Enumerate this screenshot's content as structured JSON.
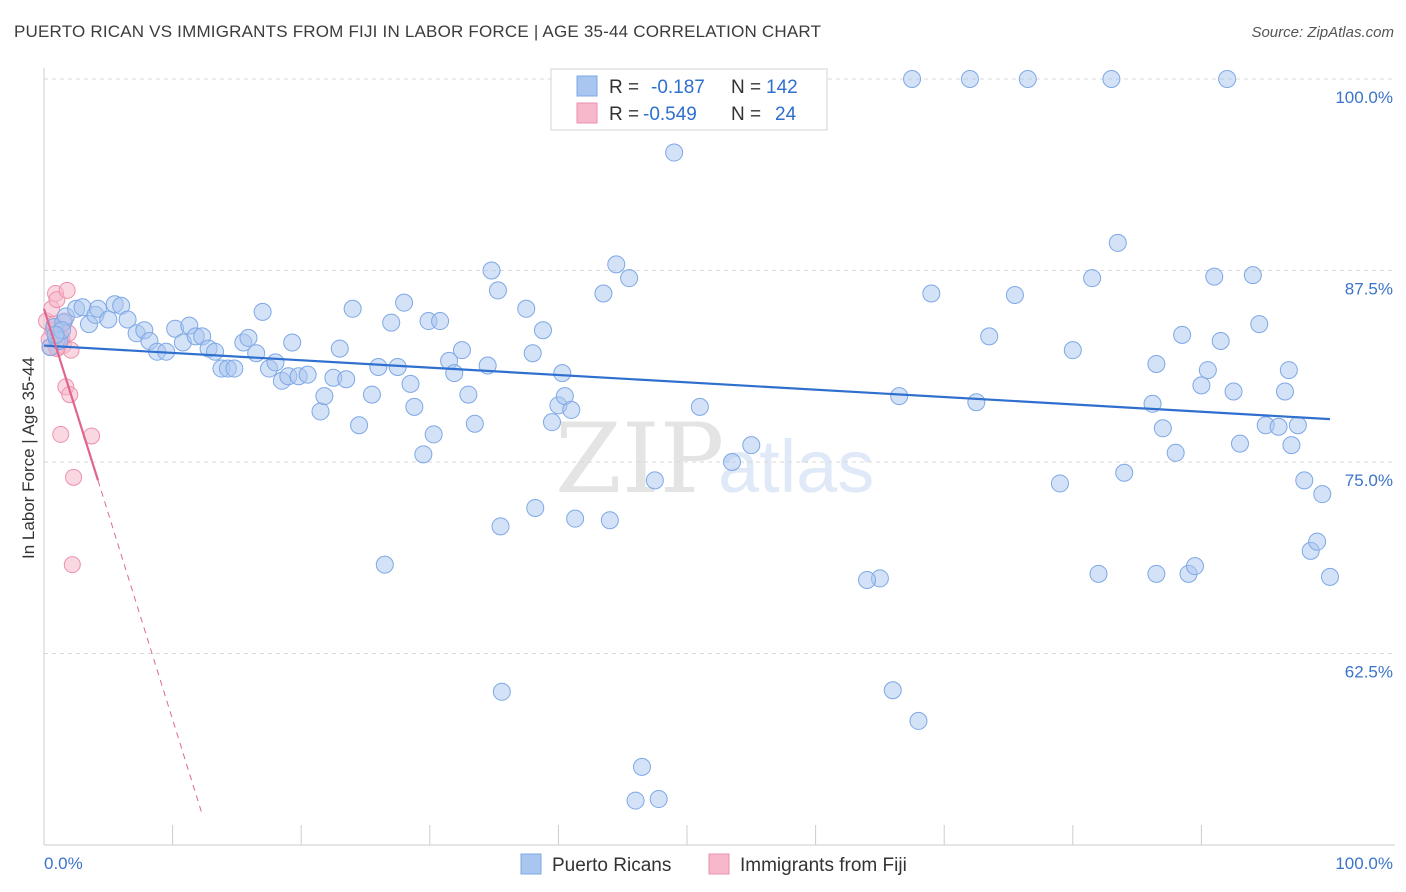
{
  "title": "PUERTO RICAN VS IMMIGRANTS FROM FIJI IN LABOR FORCE | AGE 35-44 CORRELATION CHART",
  "source": "Source: ZipAtlas.com",
  "legend_top": {
    "r_label": "R =",
    "n_label": "N =",
    "rows": [
      {
        "r": "-0.187",
        "n": "142"
      },
      {
        "r": "-0.549",
        "n": "24"
      }
    ]
  },
  "colors": {
    "blue_fill": "#a9c6f0",
    "blue_stroke": "#7ea8e6",
    "blue_line": "#2f6fce",
    "pink_fill": "#f6b8ca",
    "pink_stroke": "#ec91ad",
    "pink_line": "#e0668f",
    "grid": "#d9d9d9",
    "tick_label": "#3b74c9"
  },
  "watermark": {
    "zip": "ZIP",
    "atlas": "atlas"
  },
  "chart_data": {
    "type": "scatter",
    "title": "PUERTO RICAN VS IMMIGRANTS FROM FIJI IN LABOR FORCE | AGE 35-44 CORRELATION CHART",
    "xlabel": "",
    "ylabel": "In Labor Force | Age 35-44",
    "xlim": [
      0,
      100
    ],
    "ylim": [
      51.5,
      101
    ],
    "x_tick_labels": [
      "0.0%",
      "100.0%"
    ],
    "y_ticks": [
      100.0,
      87.5,
      75.0,
      62.5
    ],
    "y_tick_labels": [
      "100.0%",
      "87.5%",
      "75.0%",
      "62.5%"
    ],
    "grid": true,
    "legend_position": "top-center",
    "series": [
      {
        "name": "Puerto Ricans",
        "r": -0.187,
        "n": 142,
        "trend": {
          "x0": 0,
          "y0": 82.6,
          "x1": 100,
          "y1": 77.8
        },
        "points": [
          [
            0.5,
            82.5
          ],
          [
            0.8,
            83.8
          ],
          [
            1.0,
            83.0
          ],
          [
            1.2,
            82.9
          ],
          [
            1.5,
            84.1
          ],
          [
            1.7,
            84.5
          ],
          [
            1.4,
            83.6
          ],
          [
            0.9,
            83.3
          ],
          [
            2.5,
            85.0
          ],
          [
            3.0,
            85.1
          ],
          [
            3.5,
            84.0
          ],
          [
            4.0,
            84.6
          ],
          [
            4.2,
            85.0
          ],
          [
            5.0,
            84.3
          ],
          [
            5.5,
            85.3
          ],
          [
            6.0,
            85.2
          ],
          [
            6.5,
            84.3
          ],
          [
            7.2,
            83.4
          ],
          [
            7.8,
            83.6
          ],
          [
            8.2,
            82.9
          ],
          [
            8.8,
            82.2
          ],
          [
            9.5,
            82.2
          ],
          [
            10.2,
            83.7
          ],
          [
            10.8,
            82.8
          ],
          [
            11.3,
            83.9
          ],
          [
            11.8,
            83.2
          ],
          [
            12.3,
            83.2
          ],
          [
            12.8,
            82.4
          ],
          [
            13.3,
            82.2
          ],
          [
            13.8,
            81.1
          ],
          [
            14.3,
            81.1
          ],
          [
            14.8,
            81.1
          ],
          [
            15.5,
            82.8
          ],
          [
            15.9,
            83.1
          ],
          [
            16.5,
            82.1
          ],
          [
            17.0,
            84.8
          ],
          [
            17.5,
            81.1
          ],
          [
            18.0,
            81.5
          ],
          [
            18.5,
            80.3
          ],
          [
            19.0,
            80.6
          ],
          [
            19.3,
            82.8
          ],
          [
            19.8,
            80.6
          ],
          [
            20.5,
            80.7
          ],
          [
            21.5,
            78.3
          ],
          [
            21.8,
            79.3
          ],
          [
            22.5,
            80.5
          ],
          [
            23.0,
            82.4
          ],
          [
            23.5,
            80.4
          ],
          [
            24.0,
            85.0
          ],
          [
            24.5,
            77.4
          ],
          [
            25.5,
            79.4
          ],
          [
            26.0,
            81.2
          ],
          [
            26.5,
            68.3
          ],
          [
            27.0,
            84.1
          ],
          [
            27.5,
            81.2
          ],
          [
            28.0,
            85.4
          ],
          [
            28.5,
            80.1
          ],
          [
            28.8,
            78.6
          ],
          [
            29.5,
            75.5
          ],
          [
            29.9,
            84.2
          ],
          [
            30.3,
            76.8
          ],
          [
            30.8,
            84.2
          ],
          [
            31.5,
            81.6
          ],
          [
            31.9,
            80.8
          ],
          [
            32.5,
            82.3
          ],
          [
            33.0,
            79.4
          ],
          [
            33.5,
            77.5
          ],
          [
            34.5,
            81.3
          ],
          [
            34.8,
            87.5
          ],
          [
            35.3,
            86.2
          ],
          [
            35.5,
            70.8
          ],
          [
            35.6,
            60.0
          ],
          [
            37.5,
            85.0
          ],
          [
            38.0,
            82.1
          ],
          [
            38.2,
            72.0
          ],
          [
            38.8,
            83.6
          ],
          [
            39.5,
            77.6
          ],
          [
            40.0,
            78.7
          ],
          [
            40.3,
            80.8
          ],
          [
            40.5,
            79.3
          ],
          [
            41.0,
            78.4
          ],
          [
            41.3,
            71.3
          ],
          [
            43.5,
            86.0
          ],
          [
            44.0,
            71.2
          ],
          [
            44.5,
            87.9
          ],
          [
            45.5,
            87.0
          ],
          [
            46.0,
            52.9
          ],
          [
            46.5,
            55.1
          ],
          [
            47.5,
            73.8
          ],
          [
            49.0,
            95.2
          ],
          [
            49.5,
            100.0
          ],
          [
            51.0,
            78.6
          ],
          [
            53.5,
            75.0
          ],
          [
            55.0,
            76.1
          ],
          [
            56.0,
            100.0
          ],
          [
            58.0,
            100.0
          ],
          [
            65.0,
            67.4
          ],
          [
            66.0,
            60.1
          ],
          [
            66.5,
            79.3
          ],
          [
            68.0,
            58.1
          ],
          [
            67.5,
            100.0
          ],
          [
            69.0,
            86.0
          ],
          [
            72.0,
            100.0
          ],
          [
            72.5,
            78.9
          ],
          [
            73.5,
            83.2
          ],
          [
            75.5,
            85.9
          ],
          [
            76.5,
            100.0
          ],
          [
            79.0,
            73.6
          ],
          [
            80.0,
            82.3
          ],
          [
            81.5,
            87.0
          ],
          [
            82.0,
            67.7
          ],
          [
            83.0,
            100.0
          ],
          [
            83.5,
            89.3
          ],
          [
            84.0,
            74.3
          ],
          [
            86.5,
            81.4
          ],
          [
            86.2,
            78.8
          ],
          [
            86.5,
            67.7
          ],
          [
            87.0,
            77.2
          ],
          [
            88.0,
            75.6
          ],
          [
            88.5,
            83.3
          ],
          [
            89.0,
            67.7
          ],
          [
            89.5,
            68.2
          ],
          [
            90.0,
            80.0
          ],
          [
            90.5,
            81.0
          ],
          [
            91.0,
            87.1
          ],
          [
            91.5,
            82.9
          ],
          [
            92.0,
            100.0
          ],
          [
            92.5,
            79.6
          ],
          [
            93.0,
            76.2
          ],
          [
            94.0,
            87.2
          ],
          [
            94.5,
            84.0
          ],
          [
            95.0,
            77.4
          ],
          [
            96.0,
            77.3
          ],
          [
            96.5,
            79.6
          ],
          [
            96.8,
            81.0
          ],
          [
            97.0,
            76.1
          ],
          [
            97.5,
            77.4
          ],
          [
            98.0,
            73.8
          ],
          [
            98.5,
            69.2
          ],
          [
            99.0,
            69.8
          ],
          [
            99.4,
            72.9
          ],
          [
            100.0,
            67.5
          ],
          [
            64.0,
            67.3
          ],
          [
            47.8,
            53.0
          ]
        ]
      },
      {
        "name": "Immigrants from Fiji",
        "r": -0.549,
        "n": 24,
        "trend": {
          "x0": 0,
          "y0": 85.0,
          "x1": 4.2,
          "y1": 73.8
        },
        "trend_dashed_to": {
          "x": 12.3,
          "y": 52.0
        },
        "points": [
          [
            0.2,
            84.2
          ],
          [
            0.4,
            83.0
          ],
          [
            0.5,
            82.5
          ],
          [
            0.6,
            85.0
          ],
          [
            0.7,
            83.6
          ],
          [
            0.8,
            84.0
          ],
          [
            0.9,
            86.0
          ],
          [
            1.0,
            85.6
          ],
          [
            1.1,
            82.5
          ],
          [
            1.2,
            82.9
          ],
          [
            1.3,
            83.3
          ],
          [
            1.4,
            83.0
          ],
          [
            1.5,
            82.6
          ],
          [
            1.6,
            84.2
          ],
          [
            1.7,
            79.9
          ],
          [
            1.8,
            86.2
          ],
          [
            1.9,
            83.4
          ],
          [
            2.0,
            79.4
          ],
          [
            2.1,
            82.3
          ],
          [
            2.2,
            68.3
          ],
          [
            2.3,
            74.0
          ],
          [
            1.3,
            76.8
          ],
          [
            3.7,
            76.7
          ],
          [
            1.0,
            82.4
          ]
        ]
      }
    ]
  },
  "bottom_legend": [
    "Puerto Ricans",
    "Immigrants from Fiji"
  ]
}
